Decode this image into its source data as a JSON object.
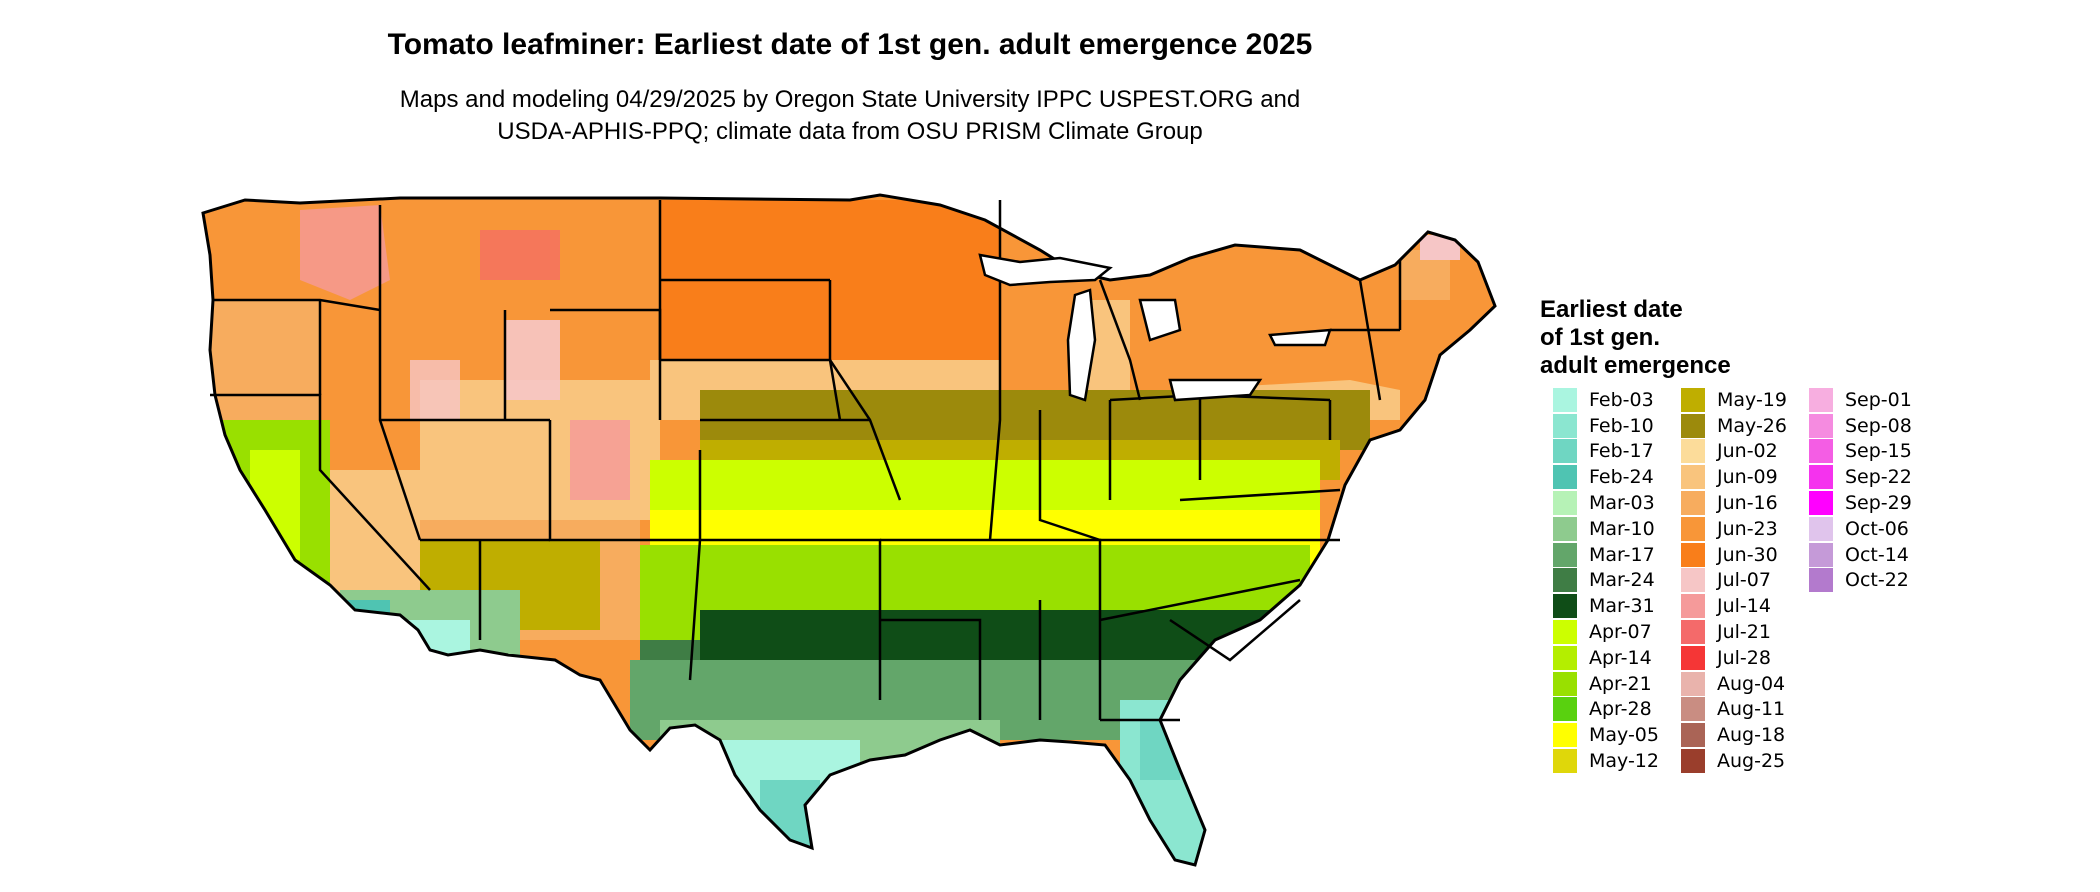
{
  "title": "Tomato leafminer: Earliest date of 1st gen. adult emergence 2025",
  "subtitle_line1": "Maps and modeling 04/29/2025 by Oregon State University IPPC USPEST.ORG and",
  "subtitle_line2": "USDA-APHIS-PPQ; climate data from OSU PRISM Climate Group",
  "legend": {
    "title_lines": [
      "Earliest date",
      "of 1st gen.",
      "adult emergence"
    ],
    "columns": [
      [
        {
          "label": "Feb-03",
          "color": "#aaf5e0"
        },
        {
          "label": "Feb-10",
          "color": "#8be6d0"
        },
        {
          "label": "Feb-17",
          "color": "#6fd6c2"
        },
        {
          "label": "Feb-24",
          "color": "#4fc4b2"
        },
        {
          "label": "Mar-03",
          "color": "#b6f2b6"
        },
        {
          "label": "Mar-10",
          "color": "#8ecb8e"
        },
        {
          "label": "Mar-17",
          "color": "#63a66a"
        },
        {
          "label": "Mar-24",
          "color": "#3f7d45"
        },
        {
          "label": "Mar-31",
          "color": "#0f4d17"
        },
        {
          "label": "Apr-07",
          "color": "#ccff00"
        },
        {
          "label": "Apr-14",
          "color": "#b4ee00"
        },
        {
          "label": "Apr-21",
          "color": "#99e000"
        },
        {
          "label": "Apr-28",
          "color": "#59d10f"
        },
        {
          "label": "May-05",
          "color": "#ffff00"
        },
        {
          "label": "May-12",
          "color": "#dfd70a"
        }
      ],
      [
        {
          "label": "May-19",
          "color": "#bfae00"
        },
        {
          "label": "May-26",
          "color": "#9c8a0c"
        },
        {
          "label": "Jun-02",
          "color": "#fcdc9a"
        },
        {
          "label": "Jun-09",
          "color": "#f9c47d"
        },
        {
          "label": "Jun-16",
          "color": "#f7ac5e"
        },
        {
          "label": "Jun-23",
          "color": "#f89638"
        },
        {
          "label": "Jun-30",
          "color": "#f97e1a"
        },
        {
          "label": "Jul-07",
          "color": "#f6c6c6"
        },
        {
          "label": "Jul-14",
          "color": "#f59a9a"
        },
        {
          "label": "Jul-21",
          "color": "#f46a6a"
        },
        {
          "label": "Jul-28",
          "color": "#f53636"
        },
        {
          "label": "Aug-04",
          "color": "#e9b3ac"
        },
        {
          "label": "Aug-11",
          "color": "#c98d82"
        },
        {
          "label": "Aug-18",
          "color": "#aa6456"
        },
        {
          "label": "Aug-25",
          "color": "#9a3e2c"
        }
      ],
      [
        {
          "label": "Sep-01",
          "color": "#f7aee0"
        },
        {
          "label": "Sep-08",
          "color": "#f58be0"
        },
        {
          "label": "Sep-15",
          "color": "#f45de4"
        },
        {
          "label": "Sep-22",
          "color": "#f532ee"
        },
        {
          "label": "Sep-29",
          "color": "#ff00ff"
        },
        {
          "label": "Oct-06",
          "color": "#e0c4ec"
        },
        {
          "label": "Oct-14",
          "color": "#c59ad8"
        },
        {
          "label": "Oct-22",
          "color": "#b37acd"
        }
      ]
    ]
  }
}
